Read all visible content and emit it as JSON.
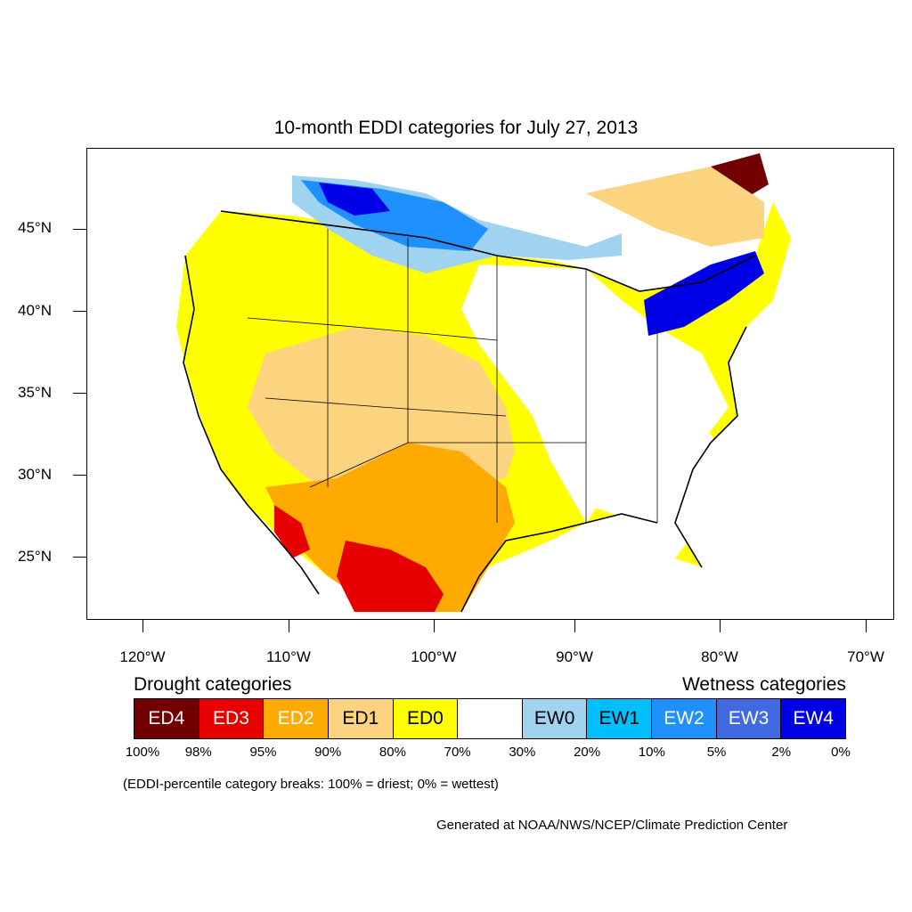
{
  "title": "10-month EDDI categories for July 27, 2013",
  "lat_labels": [
    "45°N",
    "40°N",
    "35°N",
    "30°N",
    "25°N"
  ],
  "lon_labels": [
    "120°W",
    "110°W",
    "100°W",
    "90°W",
    "80°W",
    "70°W"
  ],
  "legend": {
    "drought_heading": "Drought categories",
    "wetness_heading": "Wetness categories",
    "categories": [
      {
        "label": "ED4",
        "color": "#730000",
        "text_color": "#ffffff"
      },
      {
        "label": "ED3",
        "color": "#e60000",
        "text_color": "#ffffff"
      },
      {
        "label": "ED2",
        "color": "#ffaa00",
        "text_color": "#ffffff"
      },
      {
        "label": "ED1",
        "color": "#fcd37f",
        "text_color": "#000000"
      },
      {
        "label": "ED0",
        "color": "#ffff00",
        "text_color": "#000000"
      },
      {
        "label": "",
        "color": "#ffffff",
        "text_color": "#000000"
      },
      {
        "label": "EW0",
        "color": "#9fd3f0",
        "text_color": "#000000"
      },
      {
        "label": "EW1",
        "color": "#00bfff",
        "text_color": "#000000"
      },
      {
        "label": "EW2",
        "color": "#1e90ff",
        "text_color": "#ffffff"
      },
      {
        "label": "EW3",
        "color": "#4169e1",
        "text_color": "#ffffff"
      },
      {
        "label": "EW4",
        "color": "#0000e6",
        "text_color": "#ffffff"
      }
    ],
    "percent_breaks": [
      "100%",
      "98%",
      "95%",
      "90%",
      "80%",
      "70%",
      "30%",
      "20%",
      "10%",
      "5%",
      "2%",
      "0%"
    ]
  },
  "note": "(EDDI-percentile category breaks: 100% = driest; 0% = wettest)",
  "credit": "Generated at NOAA/NWS/NCEP/Climate Prediction Center"
}
